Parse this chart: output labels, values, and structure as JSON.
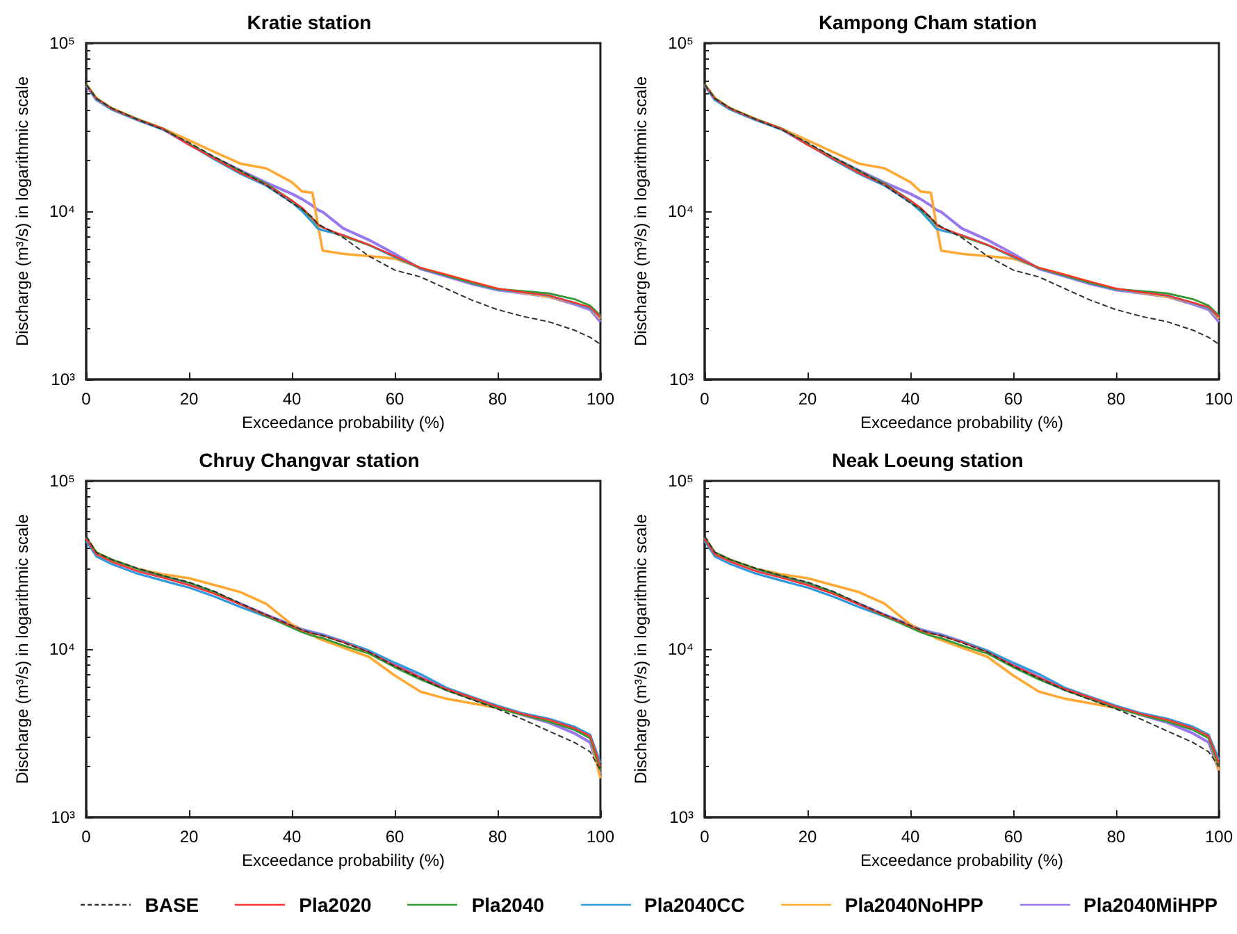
{
  "chart_data": [
    {
      "type": "line",
      "title": "Kratie station",
      "xlabel": "Exceedance probability (%)",
      "ylabel": "Discharge (m³/s) in logarithmic scale",
      "log": "y",
      "xlim": [
        0,
        100
      ],
      "xticks": [
        0,
        20,
        40,
        60,
        80,
        100
      ],
      "ylim": [
        1000,
        100000
      ],
      "yticks": [
        {
          "value": 1000,
          "label": "10³"
        },
        {
          "value": 10000,
          "label": "10⁴"
        },
        {
          "value": 100000,
          "label": "10⁵"
        }
      ],
      "grid": false,
      "marker": "none",
      "legend": "bottom",
      "x": [
        0,
        2,
        5,
        10,
        15,
        20,
        25,
        30,
        35,
        40,
        42,
        44,
        45,
        46,
        50,
        55,
        60,
        65,
        70,
        75,
        80,
        85,
        90,
        95,
        98,
        100
      ],
      "series": [
        {
          "name": "BASE",
          "color": "#333333",
          "line_style": "dashed",
          "values": [
            56500,
            46700,
            41000,
            35100,
            30500,
            25600,
            21000,
            17500,
            14300,
            11200,
            10300,
            9200,
            8430,
            8100,
            6970,
            5410,
            4470,
            4070,
            3470,
            2960,
            2600,
            2370,
            2200,
            1960,
            1780,
            1620
          ]
        },
        {
          "name": "Pla2020",
          "color": "#ff3333",
          "values": [
            56500,
            46700,
            40600,
            35100,
            30900,
            24800,
            20500,
            16900,
            14400,
            11600,
            10500,
            9100,
            8400,
            8000,
            7190,
            6320,
            5410,
            4610,
            4200,
            3810,
            3470,
            3300,
            3160,
            2860,
            2690,
            2350
          ]
        },
        {
          "name": "Pla2040",
          "color": "#339933",
          "values": [
            57000,
            47000,
            40800,
            35300,
            31000,
            25200,
            20800,
            17300,
            14600,
            11600,
            10300,
            9000,
            8300,
            8000,
            7100,
            6300,
            5400,
            4600,
            4150,
            3750,
            3450,
            3350,
            3250,
            3000,
            2750,
            2400
          ]
        },
        {
          "name": "Pla2040CC",
          "color": "#3399dd",
          "values": [
            56000,
            46000,
            40200,
            34800,
            30600,
            25000,
            20300,
            16700,
            14200,
            11300,
            10000,
            8600,
            7900,
            7700,
            7200,
            6300,
            5350,
            4580,
            4150,
            3750,
            3420,
            3300,
            3150,
            2850,
            2650,
            2350
          ]
        },
        {
          "name": "Pla2040NoHPP",
          "color": "#ffa833",
          "values": [
            57000,
            47000,
            41000,
            35300,
            31000,
            26400,
            22500,
            19200,
            18000,
            14900,
            13100,
            12900,
            8500,
            5830,
            5580,
            5410,
            5230,
            4610,
            4200,
            3800,
            3450,
            3280,
            3100,
            2850,
            2650,
            2300
          ]
        },
        {
          "name": "Pla2040MiHPP",
          "color": "#9977ee",
          "values": [
            56000,
            46000,
            40500,
            35000,
            30700,
            25000,
            20800,
            17500,
            14800,
            12700,
            11800,
            10800,
            10200,
            9900,
            7910,
            6750,
            5580,
            4550,
            4100,
            3700,
            3400,
            3250,
            3100,
            2800,
            2600,
            2200
          ]
        }
      ]
    },
    {
      "type": "line",
      "title": "Kampong Cham station",
      "xlabel": "Exceedance probability (%)",
      "ylabel": "Discharge (m³/s) in logarithmic scale",
      "log": "y",
      "xlim": [
        0,
        100
      ],
      "xticks": [
        0,
        20,
        40,
        60,
        80,
        100
      ],
      "ylim": [
        1000,
        100000
      ],
      "yticks": [
        {
          "value": 1000,
          "label": "10³"
        },
        {
          "value": 10000,
          "label": "10⁴"
        },
        {
          "value": 100000,
          "label": "10⁵"
        }
      ],
      "grid": false,
      "marker": "none",
      "x": [
        0,
        2,
        5,
        10,
        15,
        20,
        25,
        30,
        35,
        40,
        42,
        44,
        45,
        46,
        50,
        55,
        60,
        65,
        70,
        75,
        80,
        85,
        90,
        95,
        98,
        100
      ],
      "series": [
        {
          "color": "#333333",
          "line_style": "dashed",
          "values": [
            56500,
            46700,
            41000,
            35100,
            30500,
            25600,
            21000,
            17500,
            14300,
            11200,
            10300,
            9200,
            8430,
            8100,
            6970,
            5410,
            4470,
            4070,
            3470,
            2960,
            2600,
            2370,
            2200,
            1960,
            1780,
            1620
          ]
        },
        {
          "color": "#ff3333",
          "values": [
            56500,
            46700,
            40600,
            35100,
            30900,
            24800,
            20500,
            16900,
            14400,
            11600,
            10500,
            9100,
            8400,
            8000,
            7190,
            6320,
            5410,
            4610,
            4200,
            3810,
            3470,
            3300,
            3160,
            2860,
            2690,
            2350
          ]
        },
        {
          "color": "#339933",
          "values": [
            57000,
            47000,
            40800,
            35300,
            31000,
            25200,
            20800,
            17300,
            14600,
            11600,
            10300,
            9000,
            8300,
            8000,
            7100,
            6300,
            5400,
            4600,
            4150,
            3750,
            3450,
            3350,
            3250,
            3000,
            2750,
            2400
          ]
        },
        {
          "color": "#3399dd",
          "values": [
            56000,
            46000,
            40200,
            34800,
            30600,
            25000,
            20300,
            16700,
            14200,
            11300,
            10000,
            8600,
            7900,
            7700,
            7200,
            6300,
            5350,
            4580,
            4150,
            3750,
            3420,
            3300,
            3150,
            2850,
            2650,
            2350
          ]
        },
        {
          "color": "#ffa833",
          "values": [
            57000,
            47000,
            41000,
            35300,
            31000,
            26400,
            22500,
            19200,
            18000,
            14900,
            13100,
            12900,
            8500,
            5830,
            5580,
            5410,
            5230,
            4610,
            4200,
            3800,
            3450,
            3280,
            3100,
            2850,
            2650,
            2300
          ]
        },
        {
          "color": "#9977ee",
          "values": [
            56000,
            46000,
            40500,
            35000,
            30700,
            25000,
            20800,
            17500,
            14800,
            12700,
            11800,
            10800,
            10200,
            9900,
            7910,
            6750,
            5580,
            4550,
            4100,
            3700,
            3400,
            3250,
            3100,
            2800,
            2600,
            2200
          ]
        }
      ]
    },
    {
      "type": "line",
      "title": "Chruy Changvar station",
      "xlabel": "Exceedance probability (%)",
      "ylabel": "Discharge (m³/s) in logarithmic scale",
      "log": "y",
      "xlim": [
        0,
        100
      ],
      "xticks": [
        0,
        20,
        40,
        60,
        80,
        100
      ],
      "ylim": [
        1000,
        100000
      ],
      "yticks": [
        {
          "value": 1000,
          "label": "10³"
        },
        {
          "value": 10000,
          "label": "10⁴"
        },
        {
          "value": 100000,
          "label": "10⁵"
        }
      ],
      "grid": false,
      "marker": "none",
      "x": [
        0,
        2,
        5,
        10,
        15,
        20,
        25,
        30,
        35,
        40,
        42,
        44,
        45,
        46,
        50,
        55,
        60,
        65,
        70,
        75,
        80,
        85,
        90,
        95,
        98,
        100
      ],
      "series": [
        {
          "color": "#333333",
          "line_style": "dashed",
          "values": [
            47000,
            37500,
            34000,
            30200,
            27300,
            25000,
            22000,
            18700,
            16000,
            13800,
            13000,
            12400,
            12200,
            12000,
            10900,
            9600,
            7900,
            6700,
            5700,
            5000,
            4400,
            3810,
            3250,
            2780,
            2450,
            1900
          ]
        },
        {
          "color": "#ff3333",
          "values": [
            45000,
            36500,
            33000,
            29000,
            26500,
            24000,
            21300,
            18400,
            15900,
            13700,
            12900,
            12400,
            12200,
            12000,
            11000,
            9600,
            8000,
            6800,
            5800,
            5150,
            4550,
            4100,
            3800,
            3380,
            3050,
            2000
          ]
        },
        {
          "color": "#339933",
          "values": [
            46000,
            37500,
            34000,
            30000,
            27200,
            24800,
            21800,
            18500,
            15700,
            13400,
            12600,
            12000,
            11800,
            11600,
            10500,
            9400,
            7800,
            6600,
            5700,
            5050,
            4450,
            4050,
            3700,
            3300,
            2950,
            1900
          ]
        },
        {
          "color": "#3399dd",
          "values": [
            44000,
            35500,
            32000,
            28100,
            25500,
            23200,
            20500,
            17800,
            15600,
            13700,
            13000,
            12500,
            12300,
            12100,
            11100,
            9800,
            8300,
            7100,
            5900,
            5200,
            4600,
            4150,
            3850,
            3450,
            3100,
            2100
          ]
        },
        {
          "color": "#ffa833",
          "values": [
            46000,
            37500,
            34000,
            30000,
            27800,
            26400,
            24000,
            21800,
            18600,
            14000,
            13000,
            12200,
            11600,
            11300,
            10200,
            8980,
            6970,
            5580,
            5070,
            4760,
            4470,
            4070,
            3770,
            3360,
            3050,
            1700
          ]
        },
        {
          "color": "#9977ee",
          "values": [
            46000,
            37000,
            33500,
            29800,
            27000,
            24500,
            21600,
            18600,
            16000,
            13900,
            13100,
            12600,
            12400,
            12200,
            11100,
            9700,
            8100,
            6800,
            5800,
            5100,
            4500,
            4050,
            3650,
            3150,
            2790,
            1800
          ]
        }
      ]
    },
    {
      "type": "line",
      "title": "Neak Loeung station",
      "xlabel": "Exceedance probability (%)",
      "ylabel": "Discharge (m³/s) in logarithmic scale",
      "log": "y",
      "xlim": [
        0,
        100
      ],
      "xticks": [
        0,
        20,
        40,
        60,
        80,
        100
      ],
      "ylim": [
        1000,
        100000
      ],
      "yticks": [
        {
          "value": 1000,
          "label": "10³"
        },
        {
          "value": 10000,
          "label": "10⁴"
        },
        {
          "value": 100000,
          "label": "10⁵"
        }
      ],
      "grid": false,
      "marker": "none",
      "x": [
        0,
        2,
        5,
        10,
        15,
        20,
        25,
        30,
        35,
        40,
        42,
        44,
        45,
        46,
        50,
        55,
        60,
        65,
        70,
        75,
        80,
        85,
        90,
        95,
        98,
        100
      ],
      "series": [
        {
          "color": "#333333",
          "line_style": "dashed",
          "values": [
            47000,
            37500,
            34000,
            30200,
            27300,
            25000,
            22000,
            18700,
            16000,
            13800,
            13000,
            12400,
            12200,
            12000,
            10900,
            9600,
            7900,
            6700,
            5700,
            5000,
            4400,
            3810,
            3250,
            2780,
            2450,
            2000
          ]
        },
        {
          "color": "#ff3333",
          "values": [
            45000,
            36500,
            33000,
            29000,
            26500,
            24000,
            21300,
            18400,
            15900,
            13700,
            12900,
            12400,
            12200,
            12000,
            11000,
            9600,
            8000,
            6800,
            5800,
            5150,
            4550,
            4100,
            3800,
            3380,
            3050,
            2100
          ]
        },
        {
          "color": "#339933",
          "values": [
            46000,
            37500,
            34000,
            30000,
            27200,
            24800,
            21800,
            18500,
            15700,
            13400,
            12600,
            12000,
            11800,
            11600,
            10500,
            9400,
            7800,
            6600,
            5700,
            5050,
            4450,
            4050,
            3700,
            3300,
            2950,
            2000
          ]
        },
        {
          "color": "#3399dd",
          "values": [
            44000,
            35500,
            32000,
            28100,
            25500,
            23200,
            20500,
            17800,
            15600,
            13700,
            13000,
            12500,
            12300,
            12100,
            11100,
            9800,
            8300,
            7100,
            5900,
            5200,
            4600,
            4150,
            3850,
            3450,
            3100,
            2200
          ]
        },
        {
          "color": "#ffa833",
          "values": [
            46000,
            37500,
            34000,
            30000,
            27800,
            26400,
            24000,
            21800,
            18600,
            14000,
            13000,
            12200,
            11600,
            11300,
            10200,
            8980,
            6970,
            5580,
            5070,
            4760,
            4470,
            4070,
            3770,
            3360,
            3050,
            1900
          ]
        },
        {
          "color": "#9977ee",
          "values": [
            46000,
            37000,
            33500,
            29800,
            27000,
            24500,
            21600,
            18600,
            16000,
            13900,
            13100,
            12600,
            12400,
            12200,
            11100,
            9700,
            8100,
            6800,
            5800,
            5100,
            4500,
            4050,
            3650,
            3150,
            2790,
            1900
          ]
        }
      ]
    }
  ]
}
